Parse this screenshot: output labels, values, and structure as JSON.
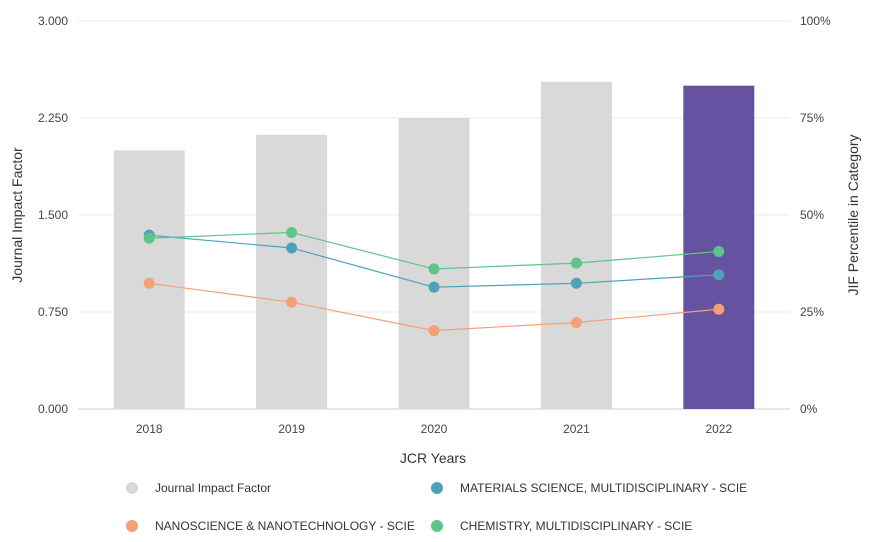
{
  "chart_data": {
    "type": "bar+line",
    "xlabel": "JCR Years",
    "ylabel_left": "Journal Impact Factor",
    "ylabel_right": "JIF Percentile in Category",
    "categories": [
      "2018",
      "2019",
      "2020",
      "2021",
      "2022"
    ],
    "ylim_left": [
      0,
      3
    ],
    "yticks_left": [
      "0.000",
      "0.750",
      "1.500",
      "2.250",
      "3.000"
    ],
    "ylim_right": [
      0,
      100
    ],
    "yticks_right": [
      "0%",
      "25%",
      "50%",
      "75%",
      "100%"
    ],
    "grid": true,
    "bars": {
      "name": "Journal Impact Factor",
      "values": [
        2.0,
        2.12,
        2.25,
        2.53,
        2.5
      ],
      "colors": [
        "#d9d9d9",
        "#d9d9d9",
        "#d9d9d9",
        "#d9d9d9",
        "#6553a1"
      ]
    },
    "series": [
      {
        "name": "MATERIALS SCIENCE, MULTIDISCIPLINARY - SCIE",
        "axis": "right",
        "color": "#4aa3b8",
        "values": [
          44.8,
          41.5,
          31.4,
          32.4,
          34.6
        ]
      },
      {
        "name": "NANOSCIENCE & NANOTECHNOLOGY - SCIE",
        "axis": "right",
        "color": "#f4a175",
        "values": [
          32.4,
          27.5,
          20.2,
          22.3,
          25.7
        ]
      },
      {
        "name": "CHEMISTRY, MULTIDISCIPLINARY - SCIE",
        "axis": "right",
        "color": "#5ec48a",
        "values": [
          44.0,
          45.5,
          36.1,
          37.6,
          40.6
        ]
      }
    ],
    "legend": [
      {
        "label": "Journal Impact Factor",
        "color": "#d9d9d9"
      },
      {
        "label": "MATERIALS SCIENCE, MULTIDISCIPLINARY - SCIE",
        "color": "#4aa3b8"
      },
      {
        "label": "NANOSCIENCE & NANOTECHNOLOGY - SCIE",
        "color": "#f4a175"
      },
      {
        "label": "CHEMISTRY, MULTIDISCIPLINARY - SCIE",
        "color": "#5ec48a"
      }
    ],
    "legend_position": "bottom"
  }
}
